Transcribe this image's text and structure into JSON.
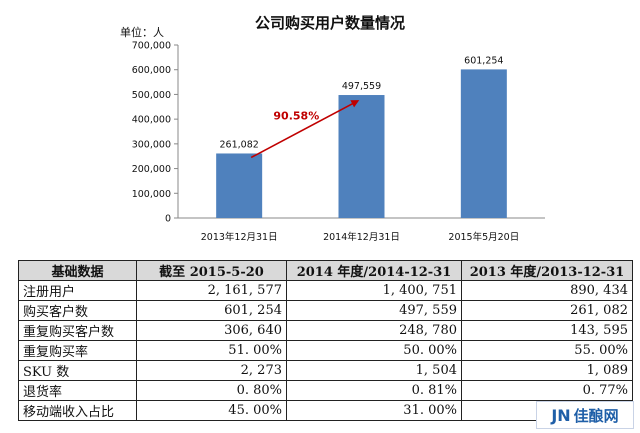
{
  "chart_data": {
    "type": "bar",
    "title": "公司购买用户数量情况",
    "unit_label": "单位：人",
    "categories": [
      "2013年12月31日",
      "2014年12月31日",
      "2015年5月20日"
    ],
    "values": [
      261082,
      497559,
      601254
    ],
    "value_labels": [
      "261,082",
      "497,559",
      "601,254"
    ],
    "ylim": [
      0,
      700000
    ],
    "yticks": [
      0,
      100000,
      200000,
      300000,
      400000,
      500000,
      600000,
      700000
    ],
    "ytick_labels": [
      "0",
      "100,000",
      "200,000",
      "300,000",
      "400,000",
      "500,000",
      "600,000",
      "700,000"
    ],
    "bar_color": "#4f81bd",
    "annotation": {
      "text": "90.58%",
      "color": "#c00000",
      "from_category": 0,
      "to_category": 1
    },
    "grid": false,
    "legend": "none"
  },
  "table": {
    "headers": [
      "基础数据",
      "截至 2015-5-20",
      "2014 年度/2014-12-31",
      "2013 年度/2013-12-31"
    ],
    "rows": [
      [
        "注册用户",
        "2, 161, 577",
        "1, 400, 751",
        "890, 434"
      ],
      [
        "购买客户数",
        "601, 254",
        "497, 559",
        "261, 082"
      ],
      [
        "重复购买客户数",
        "306, 640",
        "248, 780",
        "143, 595"
      ],
      [
        "重复购买率",
        "51. 00%",
        "50. 00%",
        "55. 00%"
      ],
      [
        "SKU 数",
        "2, 273",
        "1, 504",
        "1, 089"
      ],
      [
        "退货率",
        "0. 80%",
        "0. 81%",
        "0. 77%"
      ],
      [
        "移动端收入占比",
        "45. 00%",
        "31. 00%",
        ""
      ]
    ]
  },
  "watermark": {
    "mark": "JN",
    "text": "佳酿网"
  }
}
